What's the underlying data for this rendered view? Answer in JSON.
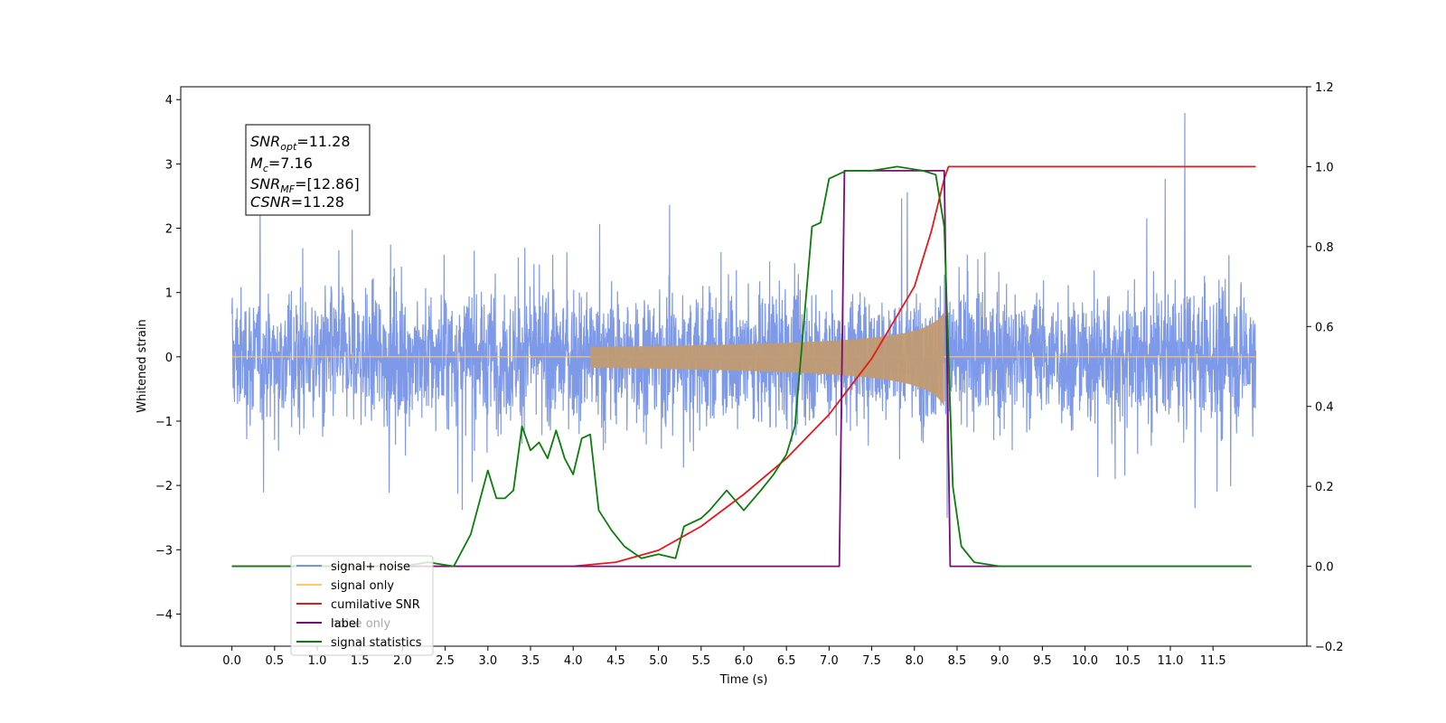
{
  "chart_data": {
    "type": "line",
    "xlabel": "Time (s)",
    "ylabel_left": "Whitened strain",
    "ylabel_right": "",
    "xlim": [
      -0.6,
      12.6
    ],
    "ylim_left": [
      -4.5,
      4.2
    ],
    "ylim_right": [
      -0.2,
      1.2
    ],
    "x_ticks": [
      "0.0",
      "0.5",
      "1.0",
      "1.5",
      "2.0",
      "2.5",
      "3.0",
      "3.5",
      "4.0",
      "4.5",
      "5.0",
      "5.5",
      "6.0",
      "6.5",
      "7.0",
      "7.5",
      "8.0",
      "8.5",
      "9.0",
      "9.5",
      "10.0",
      "10.5",
      "11.0",
      "11.5"
    ],
    "y_left_ticks": [
      "4",
      "3",
      "2",
      "1",
      "0",
      "−1",
      "−2",
      "−3",
      "−4"
    ],
    "y_right_ticks": [
      "1.2",
      "1.0",
      "0.8",
      "0.6",
      "0.4",
      "0.2",
      "0.0",
      "−0.2"
    ],
    "grid": false,
    "legend_position": "lower-left",
    "annotation": {
      "snr_opt": {
        "base": "SNR",
        "sub": "opt",
        "value": "=11.28"
      },
      "mc": {
        "base": "M",
        "sub": "c",
        "value": "=7.16"
      },
      "snr_mf": {
        "base": "SNR",
        "sub": "MF",
        "value": "=[12.86]"
      },
      "csnr": {
        "base": "CSNR",
        "value": "=11.28"
      }
    },
    "series": [
      {
        "name": "signal+ noise",
        "axis": "left",
        "color": "#7793e6",
        "description_range": [
          -3.8,
          3.8
        ],
        "x_range": [
          0.0,
          12.0
        ]
      },
      {
        "name": "signal only",
        "axis": "left",
        "color": "#c19a72",
        "chirp_start": 4.2,
        "chirp_end": 8.35,
        "peak_amplitude": 0.7
      },
      {
        "name": "cumilative SNR",
        "axis": "right",
        "color": "#e41a1c",
        "points": [
          [
            0.0,
            0.0
          ],
          [
            4.0,
            0.0
          ],
          [
            4.5,
            0.01
          ],
          [
            5.0,
            0.04
          ],
          [
            5.5,
            0.1
          ],
          [
            6.0,
            0.18
          ],
          [
            6.5,
            0.27
          ],
          [
            7.0,
            0.38
          ],
          [
            7.5,
            0.52
          ],
          [
            8.0,
            0.7
          ],
          [
            8.2,
            0.84
          ],
          [
            8.35,
            0.97
          ],
          [
            8.4,
            1.0
          ],
          [
            12.0,
            1.0
          ]
        ]
      },
      {
        "name": "label",
        "axis": "right",
        "color": "#7b0a7b",
        "points": [
          [
            0.0,
            0.0
          ],
          [
            7.12,
            0.0
          ],
          [
            7.18,
            0.99
          ],
          [
            8.35,
            0.99
          ],
          [
            8.42,
            0.0
          ],
          [
            11.95,
            0.0
          ]
        ]
      },
      {
        "name": "noise only",
        "axis": "right",
        "color": "#7b0a7b",
        "hidden_in_plot": true
      },
      {
        "name": "signal statistics",
        "axis": "right",
        "color": "#0a7d0a",
        "points": [
          [
            0.0,
            0.0
          ],
          [
            2.0,
            0.0
          ],
          [
            2.3,
            0.01
          ],
          [
            2.6,
            0.0
          ],
          [
            2.8,
            0.08
          ],
          [
            3.0,
            0.24
          ],
          [
            3.1,
            0.17
          ],
          [
            3.2,
            0.17
          ],
          [
            3.3,
            0.19
          ],
          [
            3.4,
            0.35
          ],
          [
            3.5,
            0.29
          ],
          [
            3.6,
            0.31
          ],
          [
            3.7,
            0.27
          ],
          [
            3.8,
            0.34
          ],
          [
            3.9,
            0.27
          ],
          [
            4.0,
            0.23
          ],
          [
            4.1,
            0.32
          ],
          [
            4.2,
            0.33
          ],
          [
            4.3,
            0.14
          ],
          [
            4.45,
            0.09
          ],
          [
            4.6,
            0.05
          ],
          [
            4.8,
            0.02
          ],
          [
            5.0,
            0.03
          ],
          [
            5.2,
            0.02
          ],
          [
            5.3,
            0.1
          ],
          [
            5.5,
            0.12
          ],
          [
            5.6,
            0.14
          ],
          [
            5.8,
            0.19
          ],
          [
            6.0,
            0.14
          ],
          [
            6.2,
            0.19
          ],
          [
            6.35,
            0.23
          ],
          [
            6.5,
            0.28
          ],
          [
            6.6,
            0.35
          ],
          [
            6.7,
            0.6
          ],
          [
            6.8,
            0.85
          ],
          [
            6.9,
            0.86
          ],
          [
            7.0,
            0.97
          ],
          [
            7.2,
            0.99
          ],
          [
            7.5,
            0.99
          ],
          [
            7.8,
            1.0
          ],
          [
            8.1,
            0.99
          ],
          [
            8.25,
            0.98
          ],
          [
            8.35,
            0.85
          ],
          [
            8.45,
            0.2
          ],
          [
            8.55,
            0.05
          ],
          [
            8.7,
            0.01
          ],
          [
            9.0,
            0.0
          ],
          [
            11.95,
            0.0
          ]
        ]
      }
    ]
  }
}
